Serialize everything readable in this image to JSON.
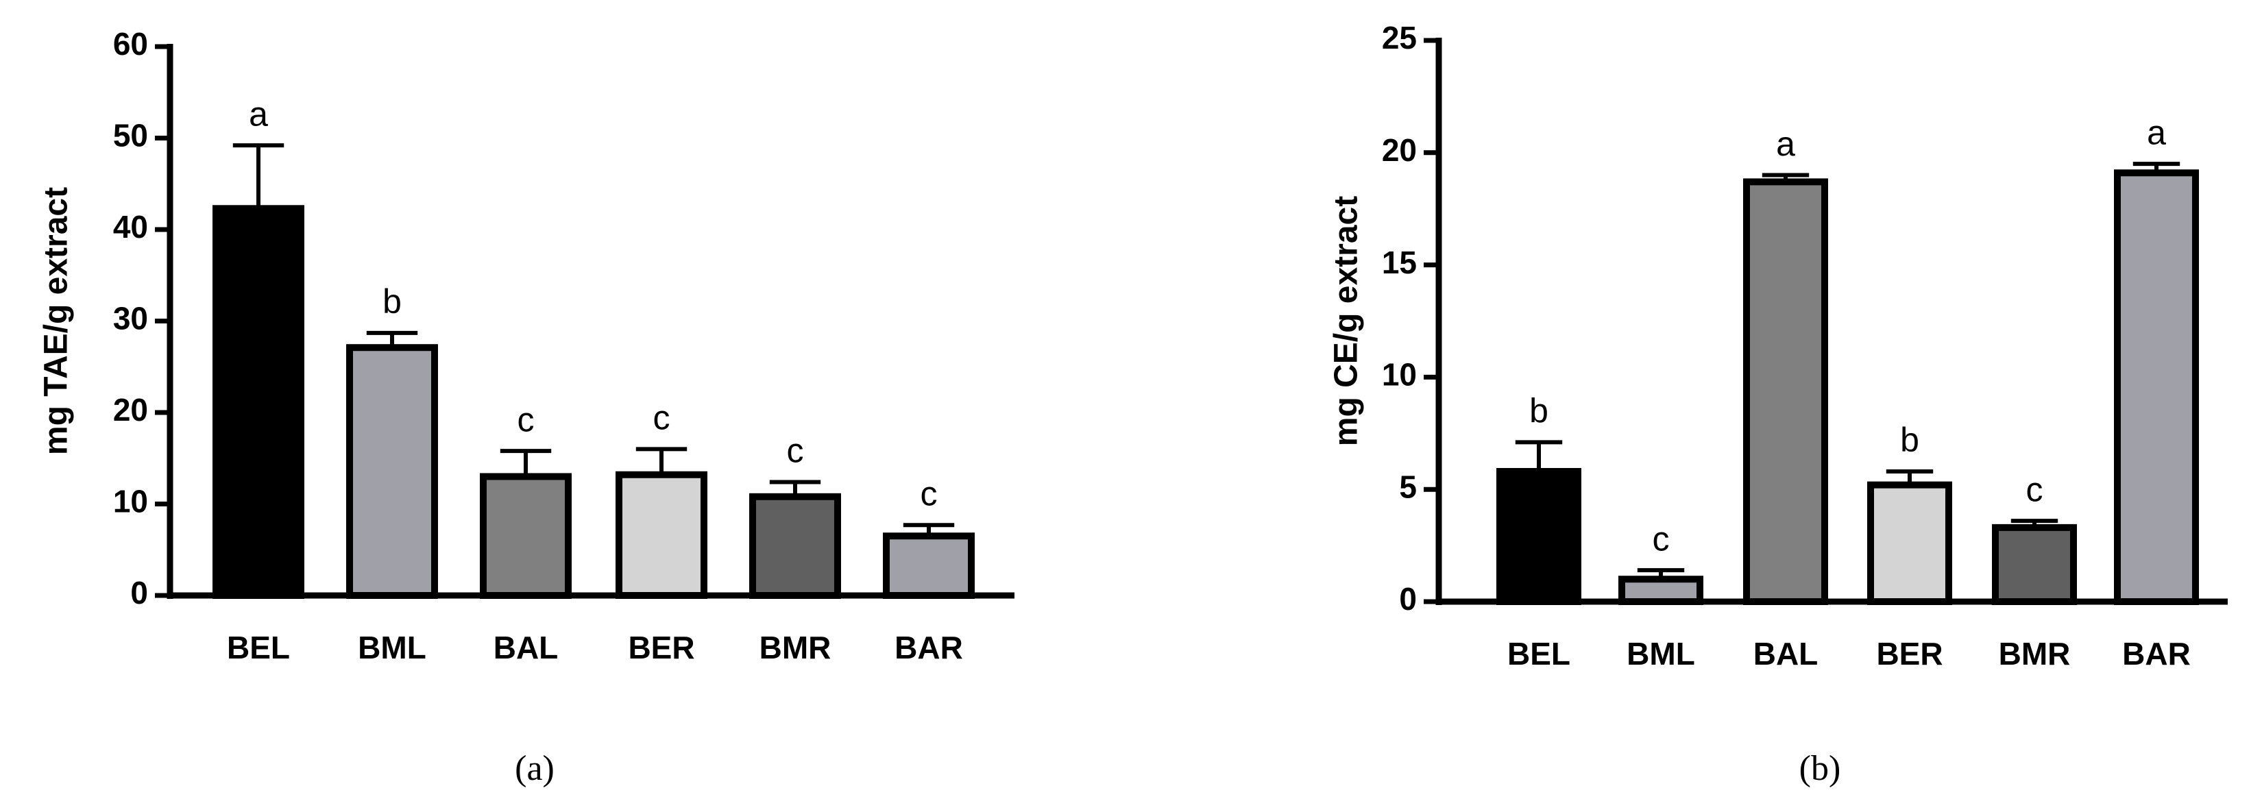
{
  "chart_data": [
    {
      "type": "bar",
      "y_label": "mg TAE/g extract",
      "caption": "(a)",
      "categories": [
        "BEL",
        "BML",
        "BAL",
        "BER",
        "BMR",
        "BAR"
      ],
      "values": [
        42.3,
        27.1,
        13.0,
        13.2,
        10.8,
        6.5
      ],
      "errors": [
        6.9,
        1.6,
        2.8,
        2.8,
        1.6,
        1.2
      ],
      "annotations": [
        "a",
        "b",
        "c",
        "c",
        "c",
        "c"
      ],
      "colors": [
        "#000000",
        "#a0a0a8",
        "#808080",
        "#d4d4d4",
        "#606060",
        "#a0a0a8"
      ],
      "ylim": [
        0,
        60
      ],
      "yticks": [
        0,
        10,
        20,
        30,
        40,
        50,
        60
      ]
    },
    {
      "type": "bar",
      "y_label": "mg CE/g extract",
      "caption": "(b)",
      "categories": [
        "BEL",
        "BML",
        "BAL",
        "BER",
        "BMR",
        "BAR"
      ],
      "values": [
        5.8,
        1.0,
        18.7,
        5.2,
        3.3,
        19.1
      ],
      "errors": [
        1.3,
        0.4,
        0.3,
        0.6,
        0.3,
        0.4
      ],
      "annotations": [
        "b",
        "c",
        "a",
        "b",
        "c",
        "a"
      ],
      "colors": [
        "#000000",
        "#a0a0a8",
        "#808080",
        "#d4d4d4",
        "#606060",
        "#a0a0a8"
      ],
      "ylim": [
        0,
        25
      ],
      "yticks": [
        0,
        5,
        10,
        15,
        20,
        25
      ]
    }
  ]
}
